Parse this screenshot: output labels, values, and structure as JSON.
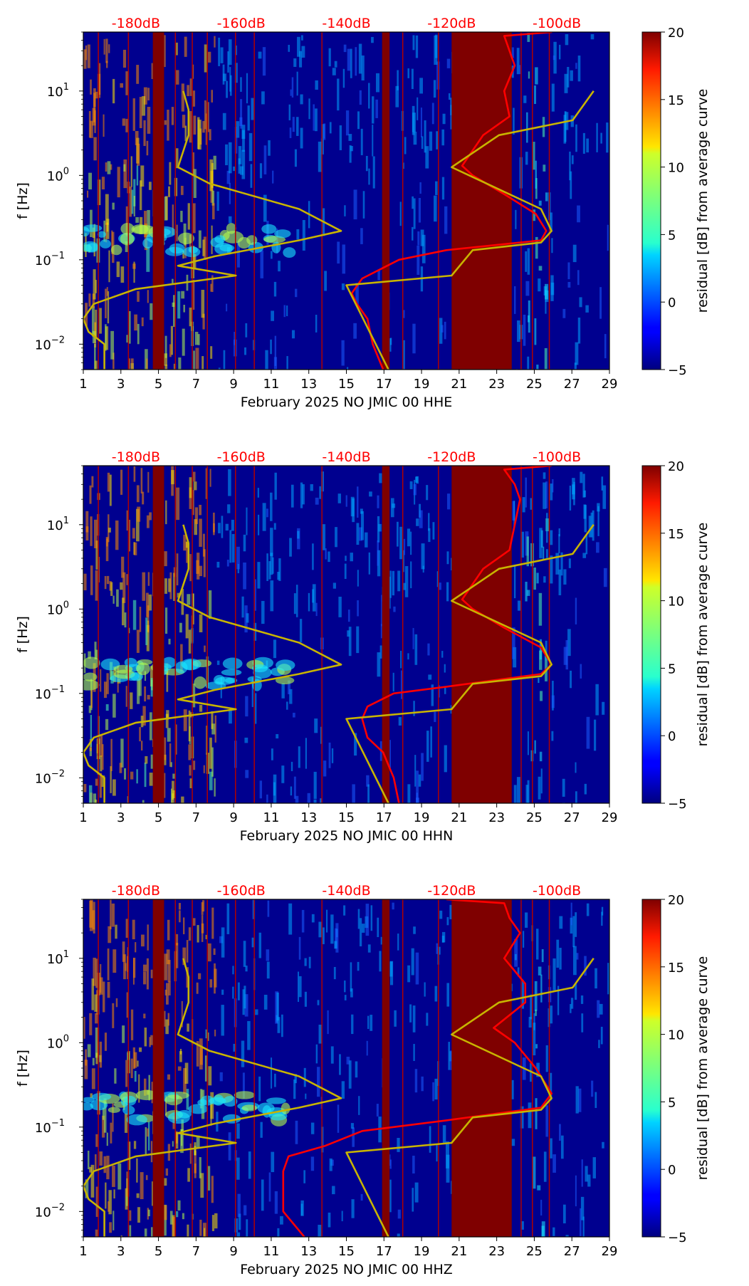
{
  "chart_data": [
    {
      "type": "heatmap",
      "title": "",
      "xlabel": "February 2025 NO JMIC 00 HHE",
      "ylabel": "f [Hz]",
      "x_ticks": [
        "1",
        "3",
        "5",
        "7",
        "9",
        "11",
        "13",
        "15",
        "17",
        "19",
        "21",
        "23",
        "25",
        "27",
        "29"
      ],
      "xlim": [
        1,
        29
      ],
      "ylim_hz": [
        0.005,
        50
      ],
      "y_ticks": [
        {
          "base": "10",
          "exp": "1",
          "value": 10
        },
        {
          "base": "10",
          "exp": "0",
          "value": 1
        },
        {
          "base": "10",
          "exp": "−1",
          "value": 0.1
        },
        {
          "base": "10",
          "exp": "−2",
          "value": 0.01
        }
      ],
      "top_axis_labels": [
        "-180dB",
        "-160dB",
        "-140dB",
        "-120dB",
        "-100dB"
      ],
      "top_axis_range_db": [
        -190,
        -90
      ],
      "colorbar": {
        "label": "residual [dB] from average curve",
        "ticks": [
          "20",
          "15",
          "10",
          "5",
          "0",
          "−5"
        ],
        "range": [
          -5,
          20
        ]
      },
      "saturated_day_bands": [
        [
          20.6,
          23.8
        ],
        [
          4.7,
          5.3
        ],
        [
          16.9,
          17.3
        ]
      ],
      "series": [
        {
          "name": "average PSD (dB, top axis)",
          "color": "#ff0000",
          "points": [
            [
              -100.9,
              50
            ],
            [
              -110,
              45
            ],
            [
              -109,
              30
            ],
            [
              -108,
              20
            ],
            [
              -110,
              10
            ],
            [
              -109,
              5
            ],
            [
              -114,
              3
            ],
            [
              -118,
              1.3
            ],
            [
              -116,
              1
            ],
            [
              -110,
              0.6
            ],
            [
              -104,
              0.35
            ],
            [
              -102,
              0.22
            ],
            [
              -103,
              0.17
            ],
            [
              -121,
              0.13
            ],
            [
              -130,
              0.1
            ],
            [
              -137,
              0.06
            ],
            [
              -139,
              0.04
            ],
            [
              -138,
              0.03
            ],
            [
              -136,
              0.02
            ],
            [
              -135,
              0.01
            ],
            [
              -133,
              0.005
            ]
          ]
        },
        {
          "name": "noise model (dB, top axis)",
          "color": "#c8b400",
          "points": [
            [
              -93,
              10
            ],
            [
              -97,
              4.5
            ],
            [
              -111,
              3
            ],
            [
              -120,
              1.25
            ],
            [
              -103,
              0.4
            ],
            [
              -101,
              0.22
            ],
            [
              -103,
              0.16
            ],
            [
              -116,
              0.13
            ],
            [
              -120,
              0.065
            ],
            [
              -140,
              0.05
            ],
            [
              -132,
              0.005
            ]
          ]
        },
        {
          "name": "low-noise model (dB, top axis)",
          "color": "#c8b400",
          "points": [
            [
              -171,
              10
            ],
            [
              -170,
              6
            ],
            [
              -170,
              3
            ],
            [
              -172,
              1.25
            ],
            [
              -166,
              0.8
            ],
            [
              -149,
              0.4
            ],
            [
              -141,
              0.22
            ],
            [
              -149,
              0.17
            ],
            [
              -165,
              0.11
            ],
            [
              -172,
              0.085
            ],
            [
              -161,
              0.065
            ],
            [
              -180,
              0.045
            ],
            [
              -188,
              0.03
            ],
            [
              -190,
              0.02
            ],
            [
              -189,
              0.014
            ],
            [
              -186,
              0.01
            ],
            [
              -186,
              0.005
            ]
          ]
        }
      ]
    },
    {
      "type": "heatmap",
      "title": "",
      "xlabel": "February 2025 NO JMIC 00 HHN",
      "ylabel": "f [Hz]",
      "x_ticks": [
        "1",
        "3",
        "5",
        "7",
        "9",
        "11",
        "13",
        "15",
        "17",
        "19",
        "21",
        "23",
        "25",
        "27",
        "29"
      ],
      "xlim": [
        1,
        29
      ],
      "ylim_hz": [
        0.005,
        50
      ],
      "y_ticks": [
        {
          "base": "10",
          "exp": "1",
          "value": 10
        },
        {
          "base": "10",
          "exp": "0",
          "value": 1
        },
        {
          "base": "10",
          "exp": "−1",
          "value": 0.1
        },
        {
          "base": "10",
          "exp": "−2",
          "value": 0.01
        }
      ],
      "top_axis_labels": [
        "-180dB",
        "-160dB",
        "-140dB",
        "-120dB",
        "-100dB"
      ],
      "top_axis_range_db": [
        -190,
        -90
      ],
      "colorbar": {
        "label": "residual [dB] from average curve",
        "ticks": [
          "20",
          "15",
          "10",
          "5",
          "0",
          "−5"
        ],
        "range": [
          -5,
          20
        ]
      },
      "saturated_day_bands": [
        [
          20.6,
          23.8
        ],
        [
          4.7,
          5.3
        ],
        [
          16.9,
          17.3
        ]
      ],
      "series": [
        {
          "name": "average PSD (dB, top axis)",
          "color": "#ff0000",
          "points": [
            [
              -101,
              50
            ],
            [
              -110,
              45
            ],
            [
              -108,
              30
            ],
            [
              -107,
              20
            ],
            [
              -108,
              10
            ],
            [
              -109,
              5
            ],
            [
              -114,
              3
            ],
            [
              -118,
              1.3
            ],
            [
              -116,
              1
            ],
            [
              -110,
              0.6
            ],
            [
              -103,
              0.35
            ],
            [
              -101,
              0.22
            ],
            [
              -103,
              0.17
            ],
            [
              -121,
              0.12
            ],
            [
              -131,
              0.1
            ],
            [
              -136,
              0.07
            ],
            [
              -137,
              0.05
            ],
            [
              -136,
              0.03
            ],
            [
              -133,
              0.02
            ],
            [
              -131,
              0.01
            ],
            [
              -130,
              0.005
            ]
          ]
        },
        {
          "name": "noise model (dB, top axis)",
          "color": "#c8b400",
          "points": [
            [
              -93,
              10
            ],
            [
              -97,
              4.5
            ],
            [
              -111,
              3
            ],
            [
              -120,
              1.25
            ],
            [
              -103,
              0.4
            ],
            [
              -101,
              0.22
            ],
            [
              -103,
              0.16
            ],
            [
              -116,
              0.13
            ],
            [
              -120,
              0.065
            ],
            [
              -140,
              0.05
            ],
            [
              -132,
              0.005
            ]
          ]
        },
        {
          "name": "low-noise model (dB, top axis)",
          "color": "#c8b400",
          "points": [
            [
              -171,
              10
            ],
            [
              -170,
              6
            ],
            [
              -170,
              3
            ],
            [
              -172,
              1.25
            ],
            [
              -166,
              0.8
            ],
            [
              -149,
              0.4
            ],
            [
              -141,
              0.22
            ],
            [
              -149,
              0.17
            ],
            [
              -165,
              0.11
            ],
            [
              -172,
              0.085
            ],
            [
              -161,
              0.065
            ],
            [
              -180,
              0.045
            ],
            [
              -188,
              0.03
            ],
            [
              -190,
              0.02
            ],
            [
              -189,
              0.014
            ],
            [
              -186,
              0.01
            ],
            [
              -186,
              0.005
            ]
          ]
        }
      ]
    },
    {
      "type": "heatmap",
      "title": "",
      "xlabel": "February 2025 NO JMIC 00 HHZ",
      "ylabel": "f [Hz]",
      "x_ticks": [
        "1",
        "3",
        "5",
        "7",
        "9",
        "11",
        "13",
        "15",
        "17",
        "19",
        "21",
        "23",
        "25",
        "27",
        "29"
      ],
      "xlim": [
        1,
        29
      ],
      "ylim_hz": [
        0.005,
        50
      ],
      "y_ticks": [
        {
          "base": "10",
          "exp": "1",
          "value": 10
        },
        {
          "base": "10",
          "exp": "0",
          "value": 1
        },
        {
          "base": "10",
          "exp": "−1",
          "value": 0.1
        },
        {
          "base": "10",
          "exp": "−2",
          "value": 0.01
        }
      ],
      "top_axis_labels": [
        "-180dB",
        "-160dB",
        "-140dB",
        "-120dB",
        "-100dB"
      ],
      "top_axis_range_db": [
        -190,
        -90
      ],
      "colorbar": {
        "label": "residual [dB] from average curve",
        "ticks": [
          "20",
          "15",
          "10",
          "5",
          "0",
          "−5"
        ],
        "range": [
          -5,
          20
        ]
      },
      "saturated_day_bands": [
        [
          20.6,
          23.8
        ],
        [
          4.7,
          5.3
        ],
        [
          16.9,
          17.3
        ]
      ],
      "series": [
        {
          "name": "average PSD (dB, top axis)",
          "color": "#ff0000",
          "points": [
            [
              -121,
              50
            ],
            [
              -110,
              45
            ],
            [
              -109,
              30
            ],
            [
              -107,
              20
            ],
            [
              -110,
              10
            ],
            [
              -106,
              5
            ],
            [
              -106,
              3
            ],
            [
              -112,
              1.5
            ],
            [
              -108,
              1
            ],
            [
              -104,
              0.5
            ],
            [
              -101,
              0.25
            ],
            [
              -103,
              0.17
            ],
            [
              -121,
              0.12
            ],
            [
              -137,
              0.09
            ],
            [
              -144,
              0.06
            ],
            [
              -151,
              0.045
            ],
            [
              -152,
              0.03
            ],
            [
              -152,
              0.02
            ],
            [
              -152,
              0.01
            ],
            [
              -148,
              0.005
            ]
          ]
        },
        {
          "name": "noise model (dB, top axis)",
          "color": "#c8b400",
          "points": [
            [
              -93,
              10
            ],
            [
              -97,
              4.5
            ],
            [
              -111,
              3
            ],
            [
              -120,
              1.25
            ],
            [
              -103,
              0.4
            ],
            [
              -101,
              0.22
            ],
            [
              -103,
              0.16
            ],
            [
              -116,
              0.13
            ],
            [
              -120,
              0.065
            ],
            [
              -140,
              0.05
            ],
            [
              -132,
              0.005
            ]
          ]
        },
        {
          "name": "low-noise model (dB, top axis)",
          "color": "#c8b400",
          "points": [
            [
              -171,
              10
            ],
            [
              -170,
              6
            ],
            [
              -170,
              3
            ],
            [
              -172,
              1.25
            ],
            [
              -166,
              0.8
            ],
            [
              -149,
              0.4
            ],
            [
              -141,
              0.22
            ],
            [
              -149,
              0.17
            ],
            [
              -165,
              0.11
            ],
            [
              -172,
              0.085
            ],
            [
              -161,
              0.065
            ],
            [
              -180,
              0.045
            ],
            [
              -188,
              0.03
            ],
            [
              -190,
              0.02
            ],
            [
              -189,
              0.014
            ],
            [
              -186,
              0.01
            ],
            [
              -186,
              0.005
            ]
          ]
        }
      ]
    }
  ]
}
